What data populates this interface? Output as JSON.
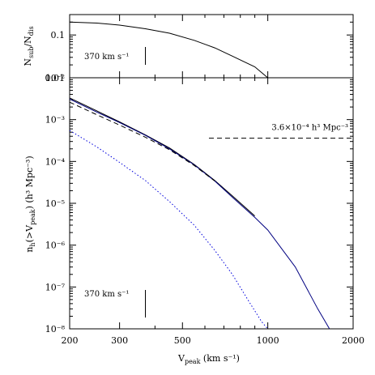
{
  "chart_data": [
    {
      "type": "line",
      "panel": "top",
      "ylabel_main": "N",
      "ylabel_sub1": "sub",
      "ylabel_mid": "/N",
      "ylabel_sub2": "dis",
      "xscale": "log",
      "yscale": "log",
      "xlim": [
        200,
        2000
      ],
      "ylim": [
        0.01,
        0.3
      ],
      "yticks": [
        {
          "value": 0.1,
          "label": "0.1"
        },
        {
          "value": 0.01,
          "label": "0.01"
        }
      ],
      "annotation": "370 km s⁻¹",
      "marker_x": 370,
      "series": [
        {
          "color": "#000000",
          "dash": "solid",
          "x": [
            200,
            250,
            300,
            370,
            450,
            550,
            650,
            750,
            900,
            1000
          ],
          "y": [
            0.2,
            0.19,
            0.17,
            0.14,
            0.11,
            0.075,
            0.05,
            0.032,
            0.018,
            0.01
          ]
        }
      ]
    },
    {
      "type": "line",
      "panel": "bottom",
      "ylabel_main": "n",
      "ylabel_sub1": "h",
      "ylabel_rest": "(>V",
      "ylabel_sub2": "peak",
      "ylabel_end": ") (h³ Mpc⁻³)",
      "xlabel_main": "V",
      "xlabel_sub": "peak",
      "xlabel_end": " (km s⁻¹)",
      "xscale": "log",
      "yscale": "log",
      "xlim": [
        200,
        2000
      ],
      "ylim": [
        1e-08,
        0.01
      ],
      "xticks": [
        {
          "value": 200,
          "label": "200"
        },
        {
          "value": 300,
          "label": "300"
        },
        {
          "value": 500,
          "label": "500"
        },
        {
          "value": 1000,
          "label": "1000"
        },
        {
          "value": 2000,
          "label": "2000"
        }
      ],
      "yticks": [
        {
          "value": 0.001,
          "label": "10⁻³"
        },
        {
          "value": 0.0001,
          "label": "10⁻⁴"
        },
        {
          "value": 1e-05,
          "label": "10⁻⁵"
        },
        {
          "value": 1e-06,
          "label": "10⁻⁶"
        },
        {
          "value": 1e-07,
          "label": "10⁻⁷"
        },
        {
          "value": 1e-08,
          "label": "10⁻⁸"
        }
      ],
      "top_tick_label": "10⁻²",
      "density_line": {
        "y": 0.00036,
        "x_start": 620,
        "x_end": 2000,
        "label": "3.6×10⁻⁴ h³ Mpc⁻³"
      },
      "annotation": "370 km s⁻¹",
      "marker_x": 370,
      "series": [
        {
          "color": "#000000",
          "dash": "solid",
          "x": [
            200,
            250,
            300,
            370,
            450,
            550,
            650,
            750,
            900
          ],
          "y": [
            0.0033,
            0.0016,
            0.00088,
            0.00043,
            0.00021,
            8.5e-05,
            3.5e-05,
            1.5e-05,
            5e-06
          ]
        },
        {
          "color": "#000080",
          "dash": "solid",
          "x": [
            200,
            250,
            300,
            370,
            450,
            550,
            650,
            750,
            900,
            1000,
            1250,
            1500,
            1650
          ],
          "y": [
            0.0031,
            0.0015,
            0.00085,
            0.00042,
            0.0002,
            8.3e-05,
            3.4e-05,
            1.4e-05,
            4.6e-06,
            2.3e-06,
            3e-07,
            3e-08,
            1e-08
          ]
        },
        {
          "color": "#000000",
          "dash": "dashed",
          "x": [
            200,
            250,
            300,
            370,
            450,
            550,
            650
          ],
          "y": [
            0.0026,
            0.0013,
            0.00074,
            0.00038,
            0.00019,
            8e-05,
            3.4e-05
          ]
        },
        {
          "color": "#0000dd",
          "dash": "dotted",
          "x": [
            200,
            250,
            300,
            370,
            450,
            550,
            650,
            750,
            850,
            950,
            1000
          ],
          "y": [
            0.00055,
            0.00022,
            9.5e-05,
            3.5e-05,
            1.1e-05,
            3e-06,
            7.5e-07,
            2e-07,
            5e-08,
            1.5e-08,
            1e-08
          ]
        }
      ]
    }
  ]
}
